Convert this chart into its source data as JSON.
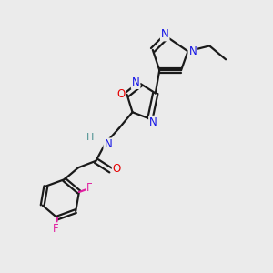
{
  "background_color": "#ebebeb",
  "bond_color": "#1a1a1a",
  "atom_colors": {
    "N": "#1414e6",
    "O": "#e60000",
    "F": "#e020a0",
    "H": "#4a9090"
  },
  "figsize": [
    3.0,
    3.0
  ],
  "dpi": 100
}
